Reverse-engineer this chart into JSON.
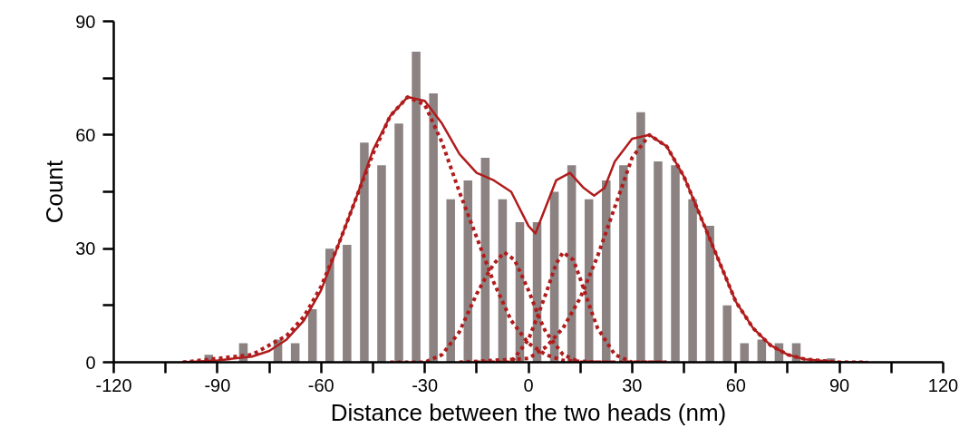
{
  "chart_data": {
    "type": "histogram",
    "xlabel": "Distance between the two heads (nm)",
    "ylabel": "Count",
    "xlim": [
      -120,
      120
    ],
    "ylim": [
      0,
      90
    ],
    "xticks": [
      -120,
      {
        "value": -105,
        "label": null
      },
      -90,
      {
        "value": -75,
        "label": null
      },
      -60,
      {
        "value": -45,
        "label": null
      },
      -30,
      {
        "value": -15,
        "label": null
      },
      0,
      {
        "value": 15,
        "label": null
      },
      30,
      {
        "value": 45,
        "label": null
      },
      60,
      {
        "value": 75,
        "label": null
      },
      90,
      {
        "value": 105,
        "label": null
      },
      120
    ],
    "yticks": [
      0,
      {
        "value": 15,
        "label": null
      },
      30,
      {
        "value": 45,
        "label": null
      },
      60,
      {
        "value": 75,
        "label": null
      },
      90
    ],
    "grid": false,
    "series": [
      {
        "color": "#8c8282",
        "bins": [
          -95,
          -90,
          -85,
          -80,
          -75,
          -70,
          -65,
          -60,
          -55,
          -50,
          -45,
          -40,
          -35,
          -30,
          -25,
          -20,
          -15,
          -10,
          -5,
          0,
          5,
          10,
          15,
          20,
          25,
          30,
          35,
          40,
          45,
          50,
          55,
          60,
          65,
          70,
          75,
          80,
          85,
          90
        ],
        "values": [
          2,
          0,
          5,
          0,
          6,
          5,
          14,
          30,
          31,
          58,
          52,
          63,
          82,
          71,
          43,
          48,
          54,
          43,
          37,
          37,
          45,
          52,
          43,
          48,
          52,
          66,
          53,
          52,
          43,
          36,
          15,
          5,
          6,
          5,
          5,
          0,
          1
        ]
      },
      {
        "type": "line",
        "line_style": "solid",
        "color": "#b01c1c",
        "x": [
          -100,
          -90,
          -80,
          -75,
          -70,
          -65,
          -60,
          -55,
          -50,
          -45,
          -40,
          -35,
          -30,
          -25,
          -20,
          -15,
          -10,
          -5,
          0,
          2,
          5,
          8,
          12,
          16,
          19,
          22,
          25,
          30,
          35,
          40,
          45,
          50,
          55,
          60,
          65,
          70,
          75,
          80,
          90,
          98
        ],
        "values": [
          0,
          0.5,
          1.5,
          3,
          6,
          11,
          19,
          31,
          43,
          56,
          65,
          70,
          69,
          63,
          55,
          50,
          48,
          45,
          36,
          34,
          41,
          48,
          50,
          46,
          44,
          46,
          53,
          59,
          60,
          57,
          49,
          38,
          27,
          16,
          9,
          4.5,
          2,
          0.8,
          0,
          0
        ]
      },
      {
        "type": "line",
        "line_style": "dotted",
        "color": "#b01c1c",
        "x": [
          -100,
          -80,
          -70,
          -65,
          -60,
          -55,
          -50,
          -45,
          -40,
          -35,
          -30,
          -25,
          -20,
          -15,
          -10,
          -5,
          0,
          5,
          10,
          20,
          40
        ],
        "values": [
          0,
          2,
          7,
          12,
          20,
          31,
          43,
          55,
          65,
          70,
          68,
          58,
          45,
          33,
          21,
          11,
          5,
          2,
          0.5,
          0,
          0
        ]
      },
      {
        "type": "line",
        "line_style": "dotted",
        "color": "#b01c1c",
        "x": [
          -40,
          -30,
          -25,
          -20,
          -15,
          -12,
          -10,
          -7,
          -4,
          0,
          3,
          5,
          10,
          15,
          25
        ],
        "values": [
          0,
          0,
          2,
          8,
          18,
          23,
          26,
          29,
          27,
          19,
          12,
          8,
          2,
          0,
          0
        ]
      },
      {
        "type": "line",
        "line_style": "dotted",
        "color": "#b01c1c",
        "x": [
          -15,
          -5,
          0,
          3,
          5,
          8,
          10,
          13,
          15,
          18,
          20,
          25,
          30,
          40
        ],
        "values": [
          0,
          0,
          6,
          13,
          18,
          26,
          29,
          27,
          22,
          14,
          9,
          2,
          0,
          0
        ]
      },
      {
        "type": "line",
        "line_style": "dotted",
        "color": "#b01c1c",
        "x": [
          -20,
          0,
          5,
          10,
          15,
          20,
          25,
          30,
          35,
          40,
          45,
          50,
          55,
          60,
          65,
          70,
          75,
          80,
          90,
          98
        ],
        "values": [
          0,
          1,
          4,
          9,
          17,
          28,
          41,
          54,
          60,
          57,
          49,
          38,
          27,
          16,
          9,
          4.5,
          2,
          0.8,
          0,
          0
        ]
      }
    ]
  }
}
